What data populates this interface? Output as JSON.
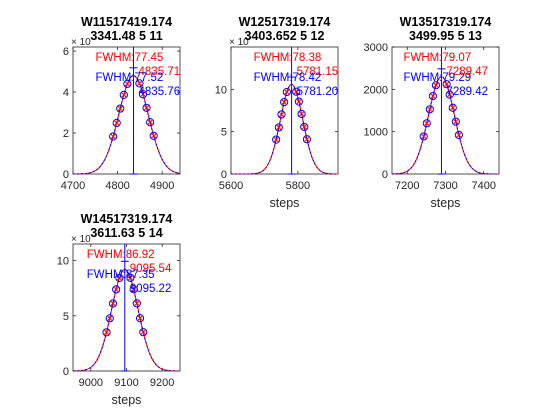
{
  "figure": {
    "background": "#ffffff",
    "colors": {
      "fit": "#ff0000",
      "fit2": "#0000ff",
      "marker_circle": "#0000ff",
      "marker_cross": "#ff0000"
    }
  },
  "chart_data": [
    {
      "type": "line",
      "title": [
        "W11517419.174",
        "3341.48 5 11"
      ],
      "xlabel": "",
      "xlim": [
        4700,
        4940
      ],
      "xticks": [
        4700,
        4800,
        4900
      ],
      "ylim": [
        0,
        62000
      ],
      "yticks": [
        0,
        20000,
        40000,
        60000
      ],
      "ytick_labels": [
        "0",
        "2",
        "4",
        "6"
      ],
      "yexponent": "× 10",
      "center_fit": 4835.71,
      "center_fit2": 4835.76,
      "peak": 48000,
      "fwhm": 77.52,
      "points_x": [
        4790,
        4798,
        4806,
        4814,
        4822,
        4849,
        4857,
        4865,
        4873,
        4881
      ],
      "annotations": [
        {
          "text": "FWHM:77.45",
          "color": "#ff0000"
        },
        {
          "text": "4835.71",
          "color": "#ff0000"
        },
        {
          "text": "FWHM:77.52",
          "color": "#0000ff"
        },
        {
          "text": "4835.76",
          "color": "#0000ff"
        }
      ]
    },
    {
      "type": "line",
      "title": [
        "W12517319.174",
        "3403.652 5 12"
      ],
      "xlabel": "steps",
      "xlim": [
        5600,
        5920
      ],
      "xticks": [
        5600,
        5800
      ],
      "ylim": [
        0,
        15000
      ],
      "yticks": [
        0,
        5000,
        10000
      ],
      "ytick_labels": [
        "0",
        "5",
        "10"
      ],
      "yexponent": "× 10",
      "center_fit": 5781.15,
      "center_fit2": 5781.2,
      "peak": 10600,
      "fwhm": 78.42,
      "points_x": [
        5735,
        5743,
        5751,
        5759,
        5767,
        5795,
        5803,
        5811,
        5819,
        5827
      ],
      "annotations": [
        {
          "text": "FWHM:78.38",
          "color": "#ff0000"
        },
        {
          "text": "5781.15",
          "color": "#ff0000"
        },
        {
          "text": "FWHM:78.42",
          "color": "#0000ff"
        },
        {
          "text": "5781.20",
          "color": "#0000ff"
        }
      ]
    },
    {
      "type": "line",
      "title": [
        "W13517319.174",
        "3499.95 5 13"
      ],
      "xlabel": "steps",
      "xlim": [
        7160,
        7440
      ],
      "xticks": [
        7200,
        7300,
        7400
      ],
      "ylim": [
        0,
        3000
      ],
      "yticks": [
        0,
        1000,
        2000,
        3000
      ],
      "ytick_labels": [
        "0",
        "1000",
        "2000",
        "3000"
      ],
      "yexponent": "",
      "center_fit": 7289.47,
      "center_fit2": 7289.42,
      "peak": 2300,
      "fwhm": 79.29,
      "points_x": [
        7243,
        7251,
        7259,
        7267,
        7275,
        7303,
        7311,
        7319,
        7327,
        7335
      ],
      "annotations": [
        {
          "text": "FWHM:79.07",
          "color": "#ff0000"
        },
        {
          "text": "7289.47",
          "color": "#ff0000"
        },
        {
          "text": "FWHM:79.29",
          "color": "#0000ff"
        },
        {
          "text": "7289.42",
          "color": "#0000ff"
        }
      ]
    },
    {
      "type": "line",
      "title": [
        "W14517319.174",
        "3611.63 5 14"
      ],
      "xlabel": "steps",
      "xlim": [
        8950,
        9250
      ],
      "xticks": [
        9000,
        9100,
        9200
      ],
      "ylim": [
        0,
        11500
      ],
      "yticks": [
        0,
        5000,
        10000
      ],
      "ytick_labels": [
        "0",
        "5",
        "10"
      ],
      "yexponent": "× 10",
      "center_fit": 9095.54,
      "center_fit2": 9095.22,
      "peak": 9200,
      "fwhm": 87.35,
      "points_x": [
        9044,
        9053,
        9062,
        9071,
        9080,
        9111,
        9120,
        9129,
        9138,
        9147
      ],
      "annotations": [
        {
          "text": "FWHM:86.92",
          "color": "#ff0000"
        },
        {
          "text": "9095.54",
          "color": "#ff0000"
        },
        {
          "text": "FWHM:87.35",
          "color": "#0000ff"
        },
        {
          "text": "9095.22",
          "color": "#0000ff"
        }
      ]
    }
  ]
}
